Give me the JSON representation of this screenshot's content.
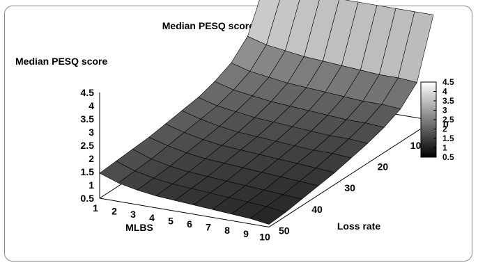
{
  "chart_data": {
    "type": "surface",
    "title": "Median PESQ scores (using PLC)",
    "zlabel": "Median PESQ score",
    "xlabel": "MLBS",
    "ylabel": "Loss rate",
    "x_ticks": [
      "1",
      "2",
      "3",
      "4",
      "5",
      "6",
      "7",
      "8",
      "9",
      "10"
    ],
    "y_ticks": [
      "0",
      "10",
      "20",
      "30",
      "40",
      "50"
    ],
    "z_ticks": [
      "0.5",
      "1",
      "1.5",
      "2",
      "2.5",
      "3",
      "3.5",
      "4",
      "4.5"
    ],
    "colorbar_ticks": [
      "4.5",
      "4",
      "3.5",
      "3",
      "2.5",
      "2",
      "1.5",
      "1",
      "0.5"
    ],
    "x_range": [
      1,
      10
    ],
    "y_range": [
      0,
      50
    ],
    "z_range": [
      0.5,
      4.5
    ],
    "colormap": [
      "#000000",
      "#ffffff"
    ],
    "colorbar_placement": "right",
    "grid": false,
    "mlbs": [
      1,
      2,
      3,
      4,
      5,
      6,
      7,
      8,
      9,
      10
    ],
    "loss_rate": [
      0,
      5,
      10,
      15,
      20,
      25,
      30,
      35,
      40,
      45,
      50
    ],
    "series": [
      {
        "mlbs": 1,
        "values": [
          4.5,
          3.0,
          2.4,
          2.1,
          1.9,
          1.8,
          1.7,
          1.6,
          1.55,
          1.5,
          1.45
        ]
      },
      {
        "mlbs": 2,
        "values": [
          4.5,
          2.8,
          2.2,
          1.9,
          1.7,
          1.6,
          1.5,
          1.4,
          1.3,
          1.25,
          1.2
        ]
      },
      {
        "mlbs": 3,
        "values": [
          4.5,
          2.7,
          2.1,
          1.8,
          1.6,
          1.45,
          1.35,
          1.25,
          1.15,
          1.1,
          1.05
        ]
      },
      {
        "mlbs": 4,
        "values": [
          4.5,
          2.6,
          2.0,
          1.7,
          1.5,
          1.35,
          1.25,
          1.15,
          1.05,
          1.0,
          0.95
        ]
      },
      {
        "mlbs": 5,
        "values": [
          4.5,
          2.55,
          1.95,
          1.65,
          1.45,
          1.3,
          1.2,
          1.1,
          1.0,
          0.95,
          0.9
        ]
      },
      {
        "mlbs": 6,
        "values": [
          4.5,
          2.5,
          1.9,
          1.6,
          1.4,
          1.25,
          1.15,
          1.05,
          0.95,
          0.9,
          0.85
        ]
      },
      {
        "mlbs": 7,
        "values": [
          4.5,
          2.45,
          1.85,
          1.55,
          1.35,
          1.2,
          1.1,
          1.0,
          0.9,
          0.85,
          0.8
        ]
      },
      {
        "mlbs": 8,
        "values": [
          4.5,
          2.4,
          1.8,
          1.5,
          1.3,
          1.15,
          1.05,
          0.95,
          0.85,
          0.8,
          0.75
        ]
      },
      {
        "mlbs": 9,
        "values": [
          4.5,
          2.4,
          1.8,
          1.5,
          1.3,
          1.15,
          1.0,
          0.9,
          0.8,
          0.75,
          0.7
        ]
      },
      {
        "mlbs": 10,
        "values": [
          4.5,
          2.35,
          1.75,
          1.45,
          1.25,
          1.1,
          0.95,
          0.85,
          0.75,
          0.65,
          0.6
        ]
      }
    ]
  }
}
